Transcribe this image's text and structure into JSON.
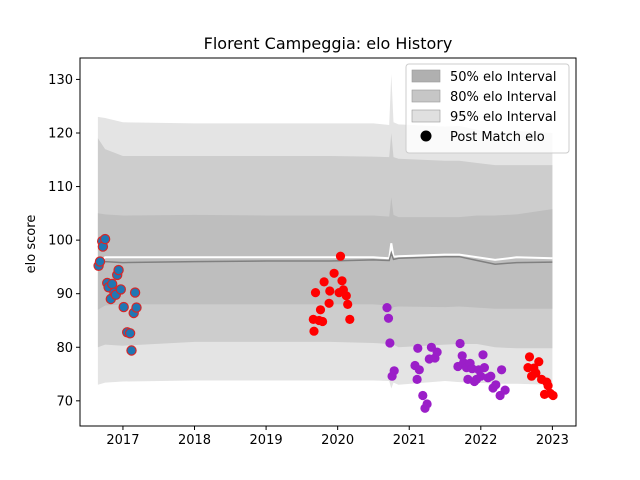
{
  "chart_data": {
    "type": "scatter",
    "title": "Florent Campeggia: elo History",
    "xlabel": "",
    "ylabel": "elo score",
    "xlim": [
      2016.4,
      2023.33
    ],
    "ylim": [
      65.3,
      134.0
    ],
    "x_ticks": [
      2017,
      2018,
      2019,
      2020,
      2021,
      2022,
      2023
    ],
    "y_ticks": [
      70,
      80,
      90,
      100,
      110,
      120,
      130
    ],
    "grid": false,
    "legend_position": "top-right",
    "legend": [
      {
        "label": "50% elo Interval",
        "kind": "band",
        "color": "#b0b0b0"
      },
      {
        "label": "80% elo Interval",
        "kind": "band",
        "color": "#c6c6c6"
      },
      {
        "label": "95% elo Interval",
        "kind": "band",
        "color": "#e0e0e0"
      },
      {
        "label": "Post Match elo",
        "kind": "marker",
        "color": "#000000"
      }
    ],
    "colors": {
      "band95": "#e4e4e4",
      "band80": "#cdcdcd",
      "band50": "#bebebe",
      "mean_line": "#ffffff",
      "median_line": "#808080",
      "points_2017": "#1f77b4",
      "points_2017_edge": "#d62728",
      "points_2020": "#ff0000",
      "points_2021_22": "#9b1fc8",
      "points_2023": "#ff0000"
    },
    "bands": {
      "x": [
        2016.65,
        2016.75,
        2017.0,
        2018.0,
        2019.0,
        2019.9,
        2020.5,
        2020.72,
        2020.75,
        2020.78,
        2020.85,
        2021.5,
        2021.7,
        2021.95,
        2022.2,
        2022.5,
        2023.0
      ],
      "lo95": [
        73.0,
        73.4,
        73.6,
        73.8,
        73.8,
        73.8,
        73.8,
        73.7,
        72.3,
        73.4,
        73.0,
        73.7,
        73.5,
        73.4,
        73.2,
        73.2,
        73.0
      ],
      "hi95": [
        123.0,
        122.8,
        122.0,
        121.8,
        121.8,
        121.8,
        121.8,
        121.5,
        131.0,
        122.0,
        121.6,
        121.2,
        121.3,
        120.6,
        119.6,
        120.4,
        120.0
      ],
      "lo80": [
        80.0,
        80.5,
        80.3,
        81.0,
        81.0,
        81.0,
        80.8,
        80.6,
        79.8,
        80.5,
        80.0,
        80.5,
        80.6,
        80.6,
        80.0,
        79.8,
        79.8
      ],
      "hi80": [
        119.0,
        117.0,
        115.7,
        115.7,
        115.7,
        115.7,
        115.6,
        115.5,
        120.0,
        115.5,
        115.2,
        114.8,
        114.8,
        114.4,
        114.0,
        114.0,
        114.0
      ],
      "lo50": [
        87.0,
        87.8,
        88.0,
        88.0,
        88.0,
        88.0,
        88.0,
        87.8,
        87.0,
        87.5,
        87.6,
        87.5,
        87.6,
        87.4,
        87.2,
        87.2,
        87.2
      ],
      "hi50": [
        105.0,
        104.8,
        104.6,
        104.7,
        104.6,
        104.6,
        104.6,
        104.4,
        108.0,
        104.7,
        104.3,
        104.3,
        104.3,
        104.6,
        104.6,
        104.8,
        105.8
      ],
      "mean": [
        95.5,
        96.8,
        96.8,
        96.8,
        96.8,
        96.8,
        96.8,
        96.6,
        99.4,
        96.9,
        97.0,
        97.3,
        97.3,
        96.8,
        96.3,
        96.8,
        96.6
      ],
      "median": [
        95.0,
        96.0,
        95.8,
        96.0,
        96.1,
        96.1,
        96.3,
        96.2,
        97.6,
        96.4,
        96.6,
        96.9,
        96.9,
        96.2,
        95.5,
        95.8,
        95.9
      ]
    },
    "series": [
      {
        "color_key": "points_2017",
        "points": [
          [
            2016.66,
            95.2
          ],
          [
            2016.68,
            96.0
          ],
          [
            2016.71,
            99.8
          ],
          [
            2016.72,
            98.8
          ],
          [
            2016.75,
            100.2
          ],
          [
            2016.78,
            92.0
          ],
          [
            2016.8,
            91.2
          ],
          [
            2016.83,
            89.0
          ],
          [
            2016.85,
            91.8
          ],
          [
            2016.88,
            90.2
          ],
          [
            2016.9,
            89.8
          ],
          [
            2016.92,
            93.5
          ],
          [
            2016.94,
            94.4
          ],
          [
            2016.97,
            90.8
          ],
          [
            2017.01,
            87.5
          ],
          [
            2017.06,
            82.8
          ],
          [
            2017.1,
            82.6
          ],
          [
            2017.12,
            79.4
          ],
          [
            2017.15,
            86.4
          ],
          [
            2017.17,
            90.2
          ],
          [
            2017.19,
            87.4
          ]
        ]
      },
      {
        "color_key": "points_2020",
        "points": [
          [
            2019.66,
            85.2
          ],
          [
            2019.67,
            83.0
          ],
          [
            2019.69,
            90.2
          ],
          [
            2019.74,
            85.0
          ],
          [
            2019.76,
            87.0
          ],
          [
            2019.79,
            84.8
          ],
          [
            2019.81,
            92.2
          ],
          [
            2019.88,
            88.2
          ],
          [
            2019.89,
            90.5
          ],
          [
            2019.95,
            93.8
          ],
          [
            2020.02,
            90.2
          ],
          [
            2020.04,
            97.0
          ],
          [
            2020.06,
            92.4
          ],
          [
            2020.08,
            90.7
          ],
          [
            2020.12,
            89.6
          ],
          [
            2020.14,
            88.0
          ],
          [
            2020.17,
            85.2
          ]
        ]
      },
      {
        "color_key": "points_2021_22",
        "points": [
          [
            2020.69,
            87.4
          ],
          [
            2020.71,
            85.4
          ],
          [
            2020.73,
            80.8
          ],
          [
            2020.76,
            74.6
          ],
          [
            2020.79,
            75.6
          ],
          [
            2021.08,
            76.6
          ],
          [
            2021.11,
            74.0
          ],
          [
            2021.12,
            79.8
          ],
          [
            2021.14,
            75.8
          ],
          [
            2021.19,
            71.0
          ],
          [
            2021.22,
            68.6
          ],
          [
            2021.25,
            69.4
          ],
          [
            2021.28,
            77.8
          ],
          [
            2021.31,
            80.0
          ],
          [
            2021.36,
            78.0
          ],
          [
            2021.39,
            79.1
          ],
          [
            2021.68,
            76.4
          ],
          [
            2021.71,
            80.7
          ],
          [
            2021.74,
            78.4
          ],
          [
            2021.76,
            77.1
          ],
          [
            2021.8,
            76.2
          ],
          [
            2021.82,
            74.0
          ],
          [
            2021.85,
            77.0
          ],
          [
            2021.88,
            76.0
          ],
          [
            2021.91,
            73.6
          ],
          [
            2021.94,
            74.0
          ],
          [
            2021.97,
            75.8
          ],
          [
            2022.0,
            74.6
          ],
          [
            2022.03,
            78.6
          ],
          [
            2022.05,
            76.2
          ],
          [
            2022.1,
            74.3
          ],
          [
            2022.14,
            74.6
          ],
          [
            2022.17,
            72.4
          ],
          [
            2022.21,
            73.0
          ],
          [
            2022.27,
            71.0
          ],
          [
            2022.29,
            75.8
          ],
          [
            2022.34,
            72.0
          ]
        ]
      },
      {
        "color_key": "points_2023",
        "points": [
          [
            2022.66,
            76.2
          ],
          [
            2022.68,
            78.2
          ],
          [
            2022.71,
            74.6
          ],
          [
            2022.74,
            76.1
          ],
          [
            2022.77,
            75.2
          ],
          [
            2022.81,
            77.3
          ],
          [
            2022.85,
            74.0
          ],
          [
            2022.89,
            71.2
          ],
          [
            2022.92,
            73.5
          ],
          [
            2022.94,
            72.8
          ],
          [
            2022.97,
            71.4
          ],
          [
            2023.01,
            71.0
          ]
        ]
      }
    ]
  }
}
